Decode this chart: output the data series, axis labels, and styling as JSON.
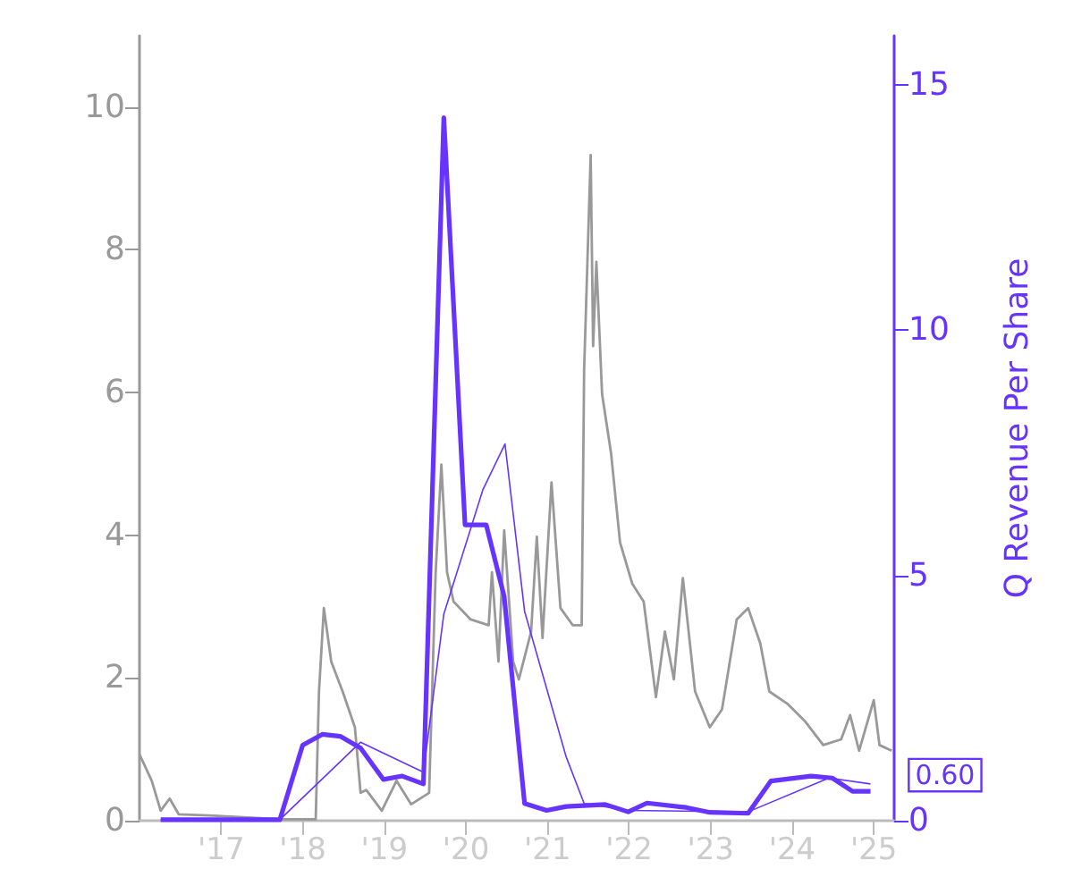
{
  "chart_data": {
    "type": "line",
    "y2label": "Q Revenue Per Share",
    "xlim": [
      2016,
      2025.25
    ],
    "xticks": [
      {
        "value": 2017,
        "label": "'17"
      },
      {
        "value": 2018,
        "label": "'18"
      },
      {
        "value": 2019,
        "label": "'19"
      },
      {
        "value": 2020,
        "label": "'20"
      },
      {
        "value": 2021,
        "label": "'21"
      },
      {
        "value": 2022,
        "label": "'22"
      },
      {
        "value": 2023,
        "label": "'23"
      },
      {
        "value": 2024,
        "label": "'24"
      },
      {
        "value": 2025,
        "label": "'25"
      }
    ],
    "ylim": [
      0,
      11
    ],
    "yticks": [
      0,
      2,
      4,
      6,
      8,
      10
    ],
    "y2lim": [
      0,
      16
    ],
    "y2ticks": [
      0,
      5,
      10,
      15
    ],
    "grid": false,
    "marker": "none",
    "series": [
      {
        "color": "#999999",
        "x": [
          2016.0,
          2016.15,
          2016.26,
          2016.37,
          2016.48,
          2016.92,
          2017.72,
          2018.16,
          2018.2,
          2018.26,
          2018.35,
          2018.49,
          2018.64,
          2018.71,
          2018.78,
          2018.97,
          2019.15,
          2019.33,
          2019.55,
          2019.63,
          2019.7,
          2019.77,
          2019.85,
          2020.06,
          2020.28,
          2020.32,
          2020.4,
          2020.47,
          2020.58,
          2020.65,
          2020.8,
          2020.87,
          2020.94,
          2021.05,
          2021.16,
          2021.31,
          2021.42,
          2021.45,
          2021.53,
          2021.56,
          2021.6,
          2021.67,
          2021.78,
          2021.89,
          2022.04,
          2022.18,
          2022.33,
          2022.44,
          2022.55,
          2022.66,
          2022.81,
          2022.99,
          2023.14,
          2023.32,
          2023.46,
          2023.61,
          2023.72,
          2023.94,
          2024.16,
          2024.38,
          2024.6,
          2024.71,
          2024.82,
          2025.0,
          2025.07,
          2025.22
        ],
        "values": [
          0.93,
          0.56,
          0.14,
          0.31,
          0.09,
          0.07,
          0.02,
          0.02,
          1.81,
          2.98,
          2.23,
          1.81,
          1.31,
          0.39,
          0.43,
          0.14,
          0.56,
          0.23,
          0.39,
          3.48,
          4.99,
          3.48,
          3.07,
          2.82,
          2.74,
          3.48,
          2.23,
          4.07,
          2.23,
          1.98,
          2.65,
          3.98,
          2.56,
          4.74,
          2.98,
          2.74,
          2.74,
          6.32,
          9.33,
          6.65,
          7.83,
          5.98,
          5.15,
          3.9,
          3.32,
          3.07,
          1.73,
          2.65,
          1.98,
          3.4,
          1.81,
          1.31,
          1.56,
          2.82,
          2.98,
          2.48,
          1.81,
          1.64,
          1.39,
          1.06,
          1.14,
          1.48,
          0.98,
          1.69,
          1.06,
          0.98
        ]
      },
      {
        "color": "#6633ff",
        "axis": "y2",
        "x": [
          2016.26,
          2017.72,
          2018.71,
          2019.48,
          2019.73,
          2020.21,
          2020.48,
          2020.72,
          2021.23,
          2021.45,
          2021.99,
          2023.46,
          2024.45,
          2024.96
        ],
        "values": [
          0.02,
          0.02,
          1.6,
          0.99,
          4.21,
          6.75,
          7.68,
          4.27,
          1.3,
          0.35,
          0.21,
          0.18,
          0.87,
          0.75
        ]
      },
      {
        "color": "#6633ff",
        "axis": "y2",
        "x": [
          2016.26,
          2017.72,
          2018.0,
          2018.24,
          2018.46,
          2018.71,
          2018.99,
          2019.22,
          2019.48,
          2019.73,
          2019.99,
          2020.25,
          2020.47,
          2020.72,
          2020.99,
          2021.23,
          2021.71,
          2021.99,
          2022.22,
          2022.7,
          2022.99,
          2023.46,
          2023.74,
          2024.23,
          2024.49,
          2024.74,
          2024.96
        ],
        "values": [
          0.02,
          0.02,
          1.54,
          1.76,
          1.72,
          1.48,
          0.84,
          0.91,
          0.75,
          14.33,
          6.03,
          6.03,
          4.57,
          0.35,
          0.21,
          0.29,
          0.33,
          0.18,
          0.36,
          0.27,
          0.17,
          0.15,
          0.81,
          0.91,
          0.87,
          0.6,
          0.6
        ],
        "value_labels": [
          null,
          null,
          null,
          null,
          null,
          null,
          null,
          null,
          null,
          null,
          null,
          null,
          null,
          null,
          null,
          null,
          null,
          null,
          null,
          null,
          null,
          null,
          null,
          null,
          null,
          null,
          "0.60"
        ]
      }
    ]
  }
}
